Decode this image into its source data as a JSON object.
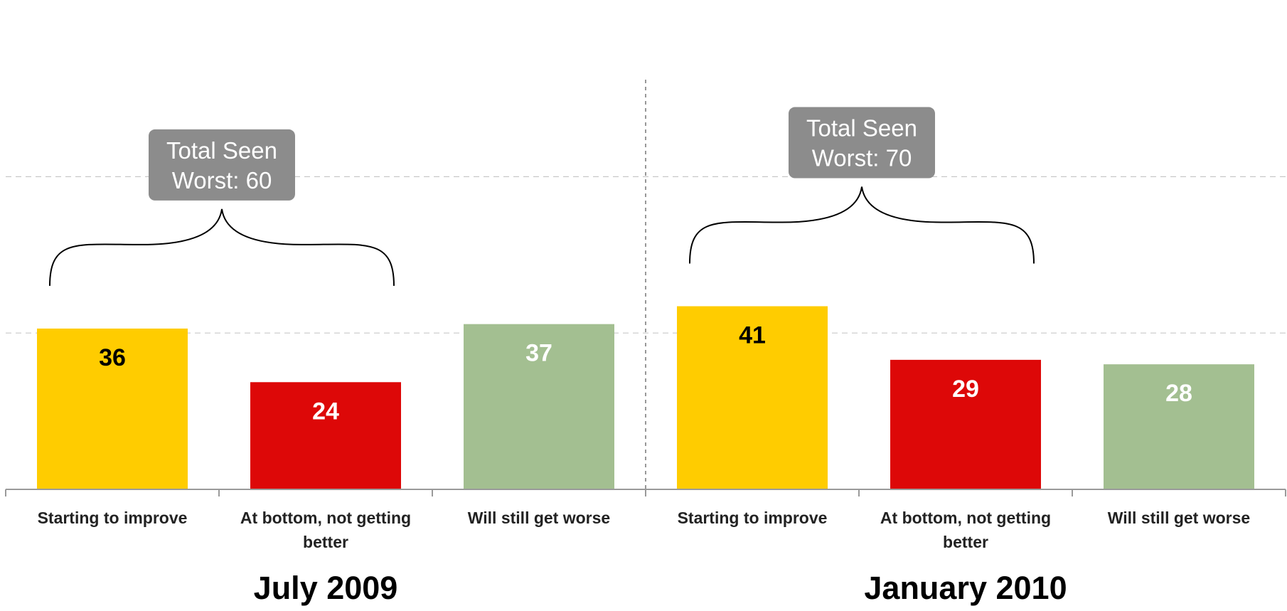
{
  "chart_data": {
    "type": "bar",
    "ylim": [
      0,
      50
    ],
    "grid": true,
    "colors": {
      "Starting to improve": "#ffcc00",
      "At bottom, not getting better": "#dd0808",
      "Will still get worse": "#a3bf91"
    },
    "label_colors": {
      "Starting to improve": "#000000",
      "At bottom, not getting better": "#ffffff",
      "Will still get worse": "#ffffff"
    },
    "groups": [
      {
        "label": "July 2009",
        "categories": [
          "Starting to improve",
          "At bottom, not getting better",
          "Will still get worse"
        ],
        "category_lines": [
          [
            "Starting to improve"
          ],
          [
            "At bottom, not getting",
            "better"
          ],
          [
            "Will still get worse"
          ]
        ],
        "values": [
          36,
          24,
          37
        ],
        "callout": {
          "line1": "Total Seen",
          "line2": "Worst: 60"
        }
      },
      {
        "label": "January 2010",
        "categories": [
          "Starting to improve",
          "At bottom, not getting better",
          "Will still get worse"
        ],
        "category_lines": [
          [
            "Starting to improve"
          ],
          [
            "At bottom, not getting",
            "better"
          ],
          [
            "Will still get worse"
          ]
        ],
        "values": [
          41,
          29,
          28
        ],
        "callout": {
          "line1": "Total Seen",
          "line2": "Worst: 70"
        }
      }
    ]
  }
}
